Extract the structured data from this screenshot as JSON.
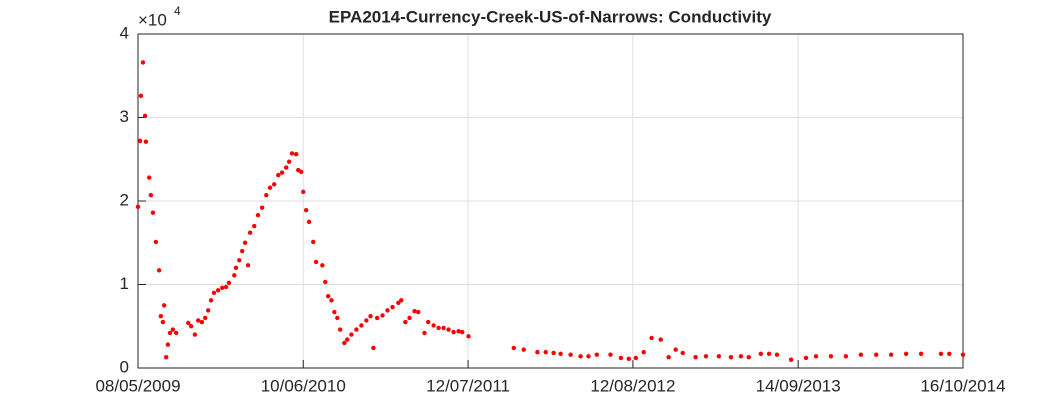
{
  "chart_data": {
    "type": "scatter",
    "title": "EPA2014-Currency-Creek-US-of-Narrows: Conductivity",
    "y_multiplier": "×10",
    "y_multiplier_exponent": "4",
    "color": "#ff0000",
    "grid": true,
    "xlim": [
      "2009-05-08",
      "2014-10-16"
    ],
    "xticks": [
      {
        "value": "2009-05-08",
        "label": "08/05/2009"
      },
      {
        "value": "2010-06-10",
        "label": "10/06/2010"
      },
      {
        "value": "2011-07-12",
        "label": "12/07/2011"
      },
      {
        "value": "2012-08-12",
        "label": "12/08/2012"
      },
      {
        "value": "2013-09-14",
        "label": "14/09/2013"
      },
      {
        "value": "2014-10-16",
        "label": "16/10/2014"
      }
    ],
    "ylim": [
      0,
      4
    ],
    "yticks": [
      0,
      1,
      2,
      3,
      4
    ],
    "x": [
      "2009-05-08",
      "2009-05-13",
      "2009-05-15",
      "2009-05-20",
      "2009-05-25",
      "2009-05-27",
      "2009-06-04",
      "2009-06-08",
      "2009-06-13",
      "2009-06-20",
      "2009-06-28",
      "2009-07-02",
      "2009-07-07",
      "2009-07-10",
      "2009-07-15",
      "2009-07-19",
      "2009-07-24",
      "2009-07-31",
      "2009-08-08",
      "2009-09-06",
      "2009-09-13",
      "2009-09-22",
      "2009-09-30",
      "2009-10-09",
      "2009-10-17",
      "2009-10-24",
      "2009-10-31",
      "2009-11-07",
      "2009-11-17",
      "2009-11-27",
      "2009-12-06",
      "2009-12-13",
      "2009-12-26",
      "2009-12-30",
      "2010-01-07",
      "2010-01-14",
      "2010-01-21",
      "2010-01-28",
      "2010-02-02",
      "2010-02-12",
      "2010-02-21",
      "2010-03-03",
      "2010-03-13",
      "2010-03-22",
      "2010-04-01",
      "2010-04-11",
      "2010-04-20",
      "2010-04-30",
      "2010-05-07",
      "2010-05-14",
      "2010-05-24",
      "2010-05-29",
      "2010-06-05",
      "2010-06-10",
      "2010-06-17",
      "2010-06-24",
      "2010-07-04",
      "2010-07-11",
      "2010-07-26",
      "2010-08-02",
      "2010-08-09",
      "2010-08-17",
      "2010-08-24",
      "2010-08-31",
      "2010-09-07",
      "2010-09-17",
      "2010-09-24",
      "2010-10-04",
      "2010-10-16",
      "2010-10-28",
      "2010-11-09",
      "2010-11-19",
      "2010-11-26",
      "2010-12-05",
      "2010-12-18",
      "2010-12-30",
      "2011-01-11",
      "2011-01-25",
      "2011-02-01",
      "2011-02-11",
      "2011-02-21",
      "2011-03-05",
      "2011-03-14",
      "2011-03-29",
      "2011-04-07",
      "2011-04-20",
      "2011-05-02",
      "2011-05-14",
      "2011-05-26",
      "2011-06-07",
      "2011-06-19",
      "2011-06-28",
      "2011-07-13",
      "2011-10-30",
      "2011-11-23",
      "2011-12-26",
      "2012-01-15",
      "2012-02-03",
      "2012-02-20",
      "2012-03-15",
      "2012-04-08",
      "2012-04-27",
      "2012-05-17",
      "2012-06-19",
      "2012-07-14",
      "2012-08-02",
      "2012-08-19",
      "2012-09-07",
      "2012-09-26",
      "2012-10-18",
      "2012-11-06",
      "2012-11-23",
      "2012-12-10",
      "2013-01-10",
      "2013-02-04",
      "2013-03-07",
      "2013-04-05",
      "2013-04-29",
      "2013-05-18",
      "2013-06-16",
      "2013-07-06",
      "2013-07-25",
      "2013-08-28",
      "2013-10-03",
      "2013-10-27",
      "2013-12-02",
      "2014-01-07",
      "2014-02-12",
      "2014-03-21",
      "2014-04-26",
      "2014-06-01",
      "2014-07-07",
      "2014-08-24",
      "2014-09-13",
      "2014-10-16"
    ],
    "values": [
      1.93,
      2.72,
      3.26,
      3.66,
      3.02,
      2.71,
      2.28,
      2.07,
      1.86,
      1.51,
      1.17,
      0.62,
      0.55,
      0.75,
      0.13,
      0.28,
      0.42,
      0.46,
      0.42,
      0.54,
      0.5,
      0.4,
      0.57,
      0.55,
      0.6,
      0.69,
      0.81,
      0.9,
      0.93,
      0.96,
      0.97,
      1.02,
      1.11,
      1.2,
      1.29,
      1.4,
      1.5,
      1.23,
      1.62,
      1.7,
      1.83,
      1.92,
      2.07,
      2.16,
      2.2,
      2.31,
      2.34,
      2.4,
      2.47,
      2.57,
      2.56,
      2.37,
      2.35,
      2.11,
      1.89,
      1.75,
      1.51,
      1.27,
      1.23,
      1.03,
      0.86,
      0.81,
      0.67,
      0.6,
      0.46,
      0.3,
      0.34,
      0.4,
      0.46,
      0.51,
      0.57,
      0.62,
      0.24,
      0.6,
      0.63,
      0.69,
      0.73,
      0.78,
      0.81,
      0.55,
      0.6,
      0.68,
      0.67,
      0.42,
      0.55,
      0.51,
      0.48,
      0.48,
      0.46,
      0.43,
      0.44,
      0.43,
      0.38,
      0.24,
      0.22,
      0.19,
      0.19,
      0.18,
      0.17,
      0.16,
      0.14,
      0.14,
      0.16,
      0.16,
      0.12,
      0.11,
      0.12,
      0.19,
      0.36,
      0.34,
      0.13,
      0.22,
      0.18,
      0.13,
      0.14,
      0.14,
      0.13,
      0.14,
      0.13,
      0.17,
      0.17,
      0.16,
      0.1,
      0.12,
      0.14,
      0.14,
      0.14,
      0.16,
      0.16,
      0.16,
      0.17,
      0.17,
      0.17,
      0.17,
      0.16
    ]
  }
}
